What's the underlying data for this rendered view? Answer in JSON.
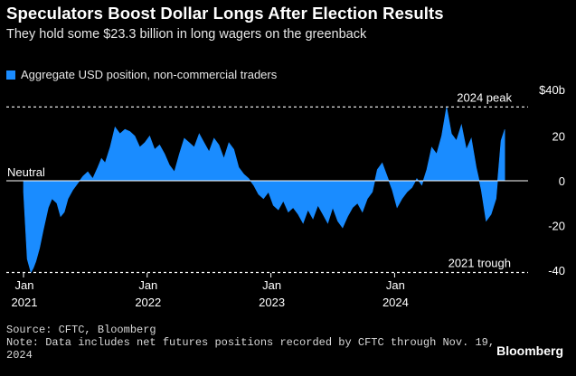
{
  "header": {
    "title": "Speculators Boost Dollar Longs After Election Results",
    "subtitle": "They hold some $23.3 billion in long wagers on the greenback"
  },
  "legend": {
    "label": "Aggregate USD position, non-commercial traders"
  },
  "colors": {
    "series": "#1a8cff",
    "background": "#000000",
    "text": "#ffffff"
  },
  "annotations": {
    "peak": "2024 peak",
    "trough": "2021 trough",
    "neutral": "Neutral"
  },
  "footer": {
    "source": "Source: CFTC, Bloomberg",
    "note_line1": "Note: Data includes net futures positions recorded by CFTC through Nov. 19,",
    "note_line2": "2024",
    "brand": "Bloomberg"
  },
  "chart_data": {
    "type": "area",
    "title": "Speculators Boost Dollar Longs After Election Results",
    "subtitle": "They hold some $23.3 billion in long wagers on the greenback",
    "ylabel": "",
    "unit": "$ billion",
    "ylim": [
      -40,
      40
    ],
    "yticks": [
      {
        "value": 40,
        "label": "$40b"
      },
      {
        "value": 20,
        "label": "20"
      },
      {
        "value": 0,
        "label": "0"
      },
      {
        "value": -20,
        "label": "-20"
      },
      {
        "value": -40,
        "label": "-40"
      }
    ],
    "xlim": [
      2021.0,
      2024.94
    ],
    "xticks": [
      {
        "value": 2021,
        "month": "Jan",
        "year": "2021"
      },
      {
        "value": 2022,
        "month": "Jan",
        "year": "2022"
      },
      {
        "value": 2023,
        "month": "Jan",
        "year": "2023"
      },
      {
        "value": 2024,
        "month": "Jan",
        "year": "2024"
      }
    ],
    "reference_lines": [
      {
        "value": 33,
        "label": "2024 peak"
      },
      {
        "value": 0,
        "label": "Neutral"
      },
      {
        "value": -41,
        "label": "2021 trough"
      }
    ],
    "grid": false,
    "legend_position": "top-left",
    "series": [
      {
        "name": "Aggregate USD position, non-commercial traders",
        "x": [
          2021.0,
          2021.03,
          2021.06,
          2021.08,
          2021.1,
          2021.13,
          2021.16,
          2021.2,
          2021.23,
          2021.27,
          2021.3,
          2021.33,
          2021.36,
          2021.4,
          2021.44,
          2021.48,
          2021.52,
          2021.56,
          2021.6,
          2021.63,
          2021.66,
          2021.7,
          2021.74,
          2021.78,
          2021.82,
          2021.86,
          2021.9,
          2021.94,
          2021.98,
          2022.02,
          2022.06,
          2022.1,
          2022.14,
          2022.18,
          2022.22,
          2022.26,
          2022.3,
          2022.34,
          2022.38,
          2022.42,
          2022.46,
          2022.5,
          2022.54,
          2022.58,
          2022.62,
          2022.66,
          2022.7,
          2022.74,
          2022.78,
          2022.82,
          2022.86,
          2022.9,
          2022.94,
          2022.98,
          2023.02,
          2023.06,
          2023.1,
          2023.14,
          2023.18,
          2023.22,
          2023.26,
          2023.3,
          2023.34,
          2023.38,
          2023.42,
          2023.46,
          2023.5,
          2023.54,
          2023.58,
          2023.62,
          2023.66,
          2023.7,
          2023.74,
          2023.78,
          2023.82,
          2023.86,
          2023.9,
          2023.94,
          2023.98,
          2024.02,
          2024.06,
          2024.1,
          2024.14,
          2024.18,
          2024.22,
          2024.26,
          2024.3,
          2024.34,
          2024.38,
          2024.42,
          2024.46,
          2024.5,
          2024.54,
          2024.58,
          2024.62,
          2024.66,
          2024.7,
          2024.74,
          2024.78,
          2024.82,
          2024.86,
          2024.89
        ],
        "values": [
          -5,
          -35,
          -41,
          -39,
          -36,
          -30,
          -22,
          -12,
          -8,
          -10,
          -16,
          -14,
          -8,
          -4,
          -1,
          2,
          4,
          1,
          6,
          10,
          8,
          15,
          24,
          21,
          23,
          22,
          20,
          15,
          17,
          20,
          14,
          16,
          12,
          7,
          4,
          12,
          19,
          17,
          15,
          21,
          17,
          13,
          19,
          16,
          10,
          17,
          14,
          6,
          3,
          1,
          -2,
          -6,
          -8,
          -5,
          -11,
          -13,
          -9,
          -14,
          -12,
          -15,
          -19,
          -13,
          -17,
          -11,
          -15,
          -19,
          -12,
          -18,
          -21,
          -16,
          -12,
          -10,
          -14,
          -8,
          -5,
          5,
          8,
          2,
          -4,
          -12,
          -8,
          -5,
          -3,
          1,
          -2,
          5,
          15,
          12,
          20,
          33,
          21,
          18,
          25,
          14,
          19,
          6,
          -4,
          -18,
          -15,
          -8,
          18,
          23
        ]
      }
    ]
  }
}
